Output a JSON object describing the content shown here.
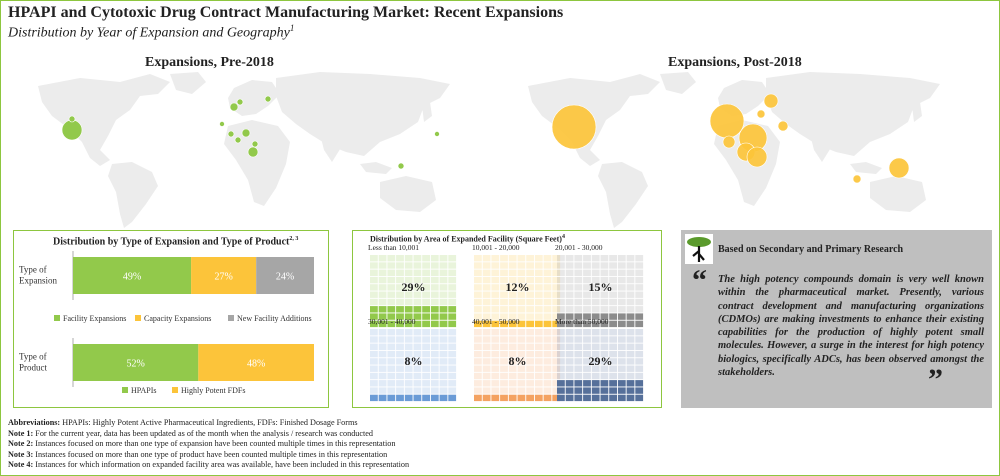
{
  "header": {
    "title": "HPAPI and Cytotoxic Drug Contract Manufacturing Market: Recent Expansions",
    "subtitle": "Distribution by Year of Expansion and Geography",
    "subtitle_note": "1"
  },
  "maps": {
    "pre_title": "Expansions, Pre-2018",
    "post_title": "Expansions, Post-2018"
  },
  "chart_data": [
    {
      "type": "bar",
      "stacked": true,
      "orientation": "horizontal",
      "title": "Distribution by Type of Expansion and Type of Product",
      "title_note": "2, 3",
      "groups": [
        {
          "label": "Type of Expansion",
          "series": [
            {
              "name": "Facility Expansions",
              "value": 49,
              "label": "49%",
              "color": "#92c94b"
            },
            {
              "name": "Capacity Expansions",
              "value": 27,
              "label": "27%",
              "color": "#fcc43a"
            },
            {
              "name": "New Facility Additions",
              "value": 24,
              "label": "24%",
              "color": "#a6a6a6"
            }
          ]
        },
        {
          "label": "Type of Product",
          "series": [
            {
              "name": "HPAPIs",
              "value": 52,
              "label": "52%",
              "color": "#92c94b"
            },
            {
              "name": "Highly Potent FDFs",
              "value": 48,
              "label": "48%",
              "color": "#fcc43a"
            }
          ]
        }
      ]
    },
    {
      "type": "waffle",
      "title": "Distribution by Area of Expanded Facility (Square Feet)",
      "title_note": "4",
      "categories": [
        {
          "name": "Less than 10,001",
          "value": 29,
          "label": "29%",
          "color": "#92c94b"
        },
        {
          "name": "10,001 - 20,000",
          "value": 12,
          "label": "12%",
          "color": "#fcc43a"
        },
        {
          "name": "20,001 - 30,000",
          "value": 15,
          "label": "15%",
          "color": "#8c8c8c"
        },
        {
          "name": "30,001 - 40,000",
          "value": 8,
          "label": "8%",
          "color": "#6a9bd6"
        },
        {
          "name": "40,001 - 50,000",
          "value": 8,
          "label": "8%",
          "color": "#f4a261"
        },
        {
          "name": "More than 50,000",
          "value": 29,
          "label": "29%",
          "color": "#56709a"
        }
      ]
    }
  ],
  "research": {
    "heading": "Based on Secondary and Primary Research",
    "quote": "The high potency compounds domain is very well known within the pharmaceutical market. Presently, various contract development and manufacturing organizations (CDMOs) are making investments to enhance their existing capabilities for the production of highly potent small molecules. However, a surge in the interest for high potency biologics, specifically ADCs, has been observed amongst the stakeholders.",
    "open_quote": "“",
    "close_quote": "”"
  },
  "notes": [
    {
      "label": "Abbreviations:",
      "text": " HPAPIs: Highly Potent Active Pharmaceutical Ingredients, FDFs: Finished Dosage Forms"
    },
    {
      "label": "Note 1:",
      "text": " For the current year, data has been updated as of the month when the analysis / research was conducted"
    },
    {
      "label": "Note 2:",
      "text": " Instances focused on more than one type of expansion have been counted multiple times in this representation"
    },
    {
      "label": "Note 3:",
      "text": " Instances focused on more than one type of product have been counted multiple times in this representation"
    },
    {
      "label": "Note 4:",
      "text": " Instances for which information on expanded facility area was available, have been included in this representation"
    }
  ],
  "colors": {
    "accent_border": "#8dc63f",
    "green": "#92c94b",
    "yellow": "#fcc43a",
    "gray": "#a6a6a6",
    "map": "#ececec"
  }
}
